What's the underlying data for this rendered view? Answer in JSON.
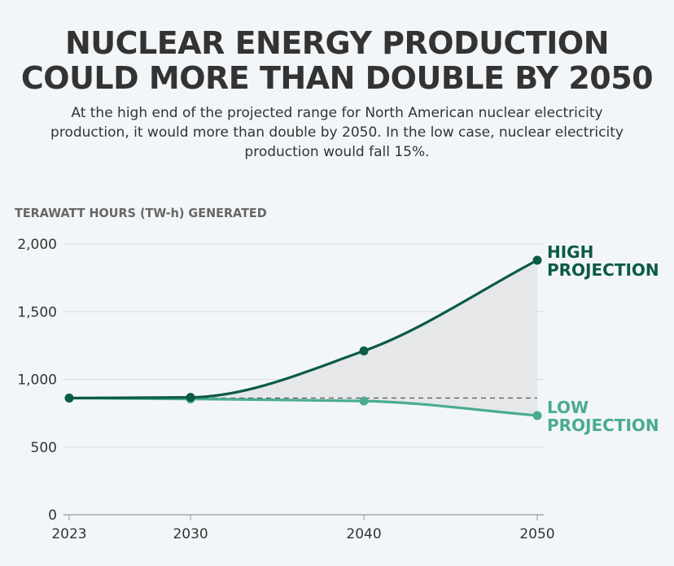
{
  "title_line1": "NUCLEAR ENERGY PRODUCTION",
  "title_line2": "COULD MORE THAN DOUBLE BY 2050",
  "subtitle": "At the high end of the projected range for North American nuclear electricity production, it would more than double by 2050. In the low case, nuclear electricity production would fall 15%.",
  "colors": {
    "high": "#0b5a47",
    "low": "#4aab91",
    "band": "#e5e7e9",
    "grid": "#d5d8dc",
    "baseline": "#555555"
  },
  "chart_data": {
    "type": "line",
    "ylabel": "TERAWATT HOURS (TW-h) GENERATED",
    "ylim": [
      0,
      2000
    ],
    "yticks": [
      0,
      500,
      1000,
      1500,
      2000
    ],
    "ytick_labels": [
      "0",
      "500",
      "1,000",
      "1,500",
      "2,000"
    ],
    "xticks": [
      2023,
      2030,
      2040,
      2050
    ],
    "xtick_labels": [
      "2023",
      "2030",
      "2040",
      "2050"
    ],
    "baseline": 862,
    "series": [
      {
        "name": "High projection",
        "label_lines": [
          "HIGH",
          "PROJECTION"
        ],
        "x": [
          2023,
          2030,
          2040,
          2050
        ],
        "values": [
          862,
          867,
          1210,
          1880
        ]
      },
      {
        "name": "Low projection",
        "label_lines": [
          "LOW",
          "PROJECTION"
        ],
        "x": [
          2023,
          2030,
          2040,
          2050
        ],
        "values": [
          862,
          855,
          840,
          733
        ]
      }
    ]
  }
}
